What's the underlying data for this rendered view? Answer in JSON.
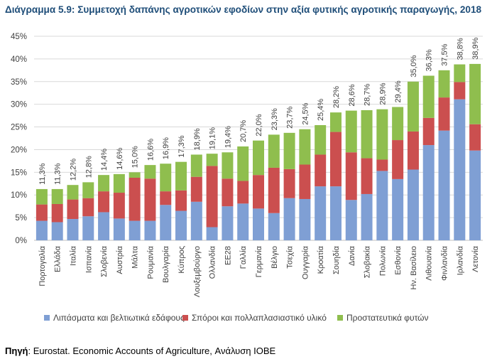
{
  "title": "Διάγραμμα 5.9: Συμμετοχή δαπάνης αγροτικών εφοδίων στην αξία φυτικής αγροτικής παραγωγής, 2018",
  "source": {
    "label": "Πηγή",
    "text": ": Eurostat. Economic Accounts of Agriculture, Ανάλυση ΙΟΒΕ"
  },
  "colors": {
    "fertilizers": "#7f9fd4",
    "seeds": "#cb4f4f",
    "protection": "#8fbe4e"
  },
  "chart_data": {
    "type": "bar",
    "stacked": true,
    "title": "Διάγραμμα 5.9: Συμμετοχή δαπάνης αγροτικών εφοδίων στην αξία φυτικής αγροτικής παραγωγής, 2018",
    "xlabel": "",
    "ylabel": "",
    "ylim": [
      0,
      45
    ],
    "yticks": [
      "0%",
      "5%",
      "10%",
      "15%",
      "20%",
      "25%",
      "30%",
      "35%",
      "40%",
      "45%"
    ],
    "grid": true,
    "legend": "bottom",
    "categories": [
      "Πορτογαλία",
      "Ελλάδα",
      "Ιταλία",
      "Ισπανία",
      "Σλοβενία",
      "Αυστρία",
      "Μάλτα",
      "Ρουμανία",
      "Βουλγαρία",
      "Κύπρος",
      "Λουξεμβούργο",
      "Ολλανδία",
      "ΕΕ28",
      "Γαλλία",
      "Γερμανία",
      "Βέλγιο",
      "Τσεχία",
      "Ουγγαρία",
      "Κροατία",
      "Σουηδία",
      "Δανία",
      "Σλοβακία",
      "Πολωνία",
      "Εσθονία",
      "Ην. Βασίλειο",
      "Λιθουανία",
      "Φινλανδία",
      "Ιρλανδία",
      "Λετονία"
    ],
    "series": [
      {
        "name": "Λιπάσματα και βελτιωτικά εδάφους",
        "values": [
          4.3,
          4.0,
          4.7,
          5.3,
          6.2,
          4.8,
          4.3,
          4.3,
          7.8,
          6.5,
          8.5,
          2.9,
          7.5,
          8.1,
          7.0,
          6.0,
          9.3,
          9.1,
          11.9,
          11.9,
          8.9,
          10.2,
          15.3,
          13.5,
          15.6,
          21.0,
          24.2,
          31.1,
          19.8
        ]
      },
      {
        "name": "Σπόροι και πολλαπλασιαστικό υλικό",
        "values": [
          3.6,
          4.0,
          4.3,
          4.0,
          4.6,
          5.7,
          9.5,
          9.3,
          3.0,
          4.5,
          5.5,
          13.5,
          6.1,
          5.0,
          7.4,
          10.0,
          6.4,
          7.6,
          7.0,
          12.0,
          10.5,
          7.9,
          2.5,
          8.6,
          8.4,
          6.0,
          7.3,
          3.8,
          5.8
        ]
      },
      {
        "name": "Προστατευτικά φυτών",
        "values": [
          3.4,
          3.3,
          3.2,
          3.5,
          3.6,
          4.1,
          1.2,
          3.0,
          6.1,
          6.3,
          4.9,
          2.7,
          5.8,
          7.6,
          7.6,
          7.3,
          8.0,
          7.8,
          6.5,
          4.3,
          9.2,
          10.6,
          11.1,
          7.3,
          11.0,
          9.3,
          6.0,
          3.9,
          13.3
        ]
      }
    ],
    "totals": [
      11.3,
      11.3,
      12.2,
      12.8,
      14.4,
      14.6,
      15.0,
      16.6,
      16.9,
      17.3,
      18.9,
      19.1,
      19.4,
      20.7,
      22.0,
      23.3,
      23.7,
      24.5,
      25.4,
      28.2,
      28.6,
      28.7,
      28.9,
      29.4,
      35.0,
      36.3,
      37.5,
      38.8,
      38.9
    ],
    "total_labels": [
      "11,3%",
      "11,3%",
      "12,2%",
      "12,8%",
      "14,4%",
      "14,6%",
      "15,0%",
      "16,6%",
      "16,9%",
      "17,3%",
      "18,9%",
      "19,1%",
      "19,4%",
      "20,7%",
      "22,0%",
      "23,3%",
      "23,7%",
      "24,5%",
      "25,4%",
      "28,2%",
      "28,6%",
      "28,7%",
      "28,9%",
      "29,4%",
      "35,0%",
      "36,3%",
      "37,5%",
      "38,8%",
      "38,9%"
    ]
  }
}
